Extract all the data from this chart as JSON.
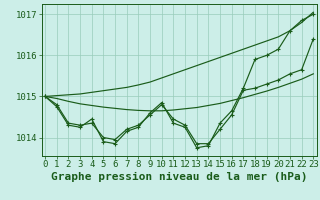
{
  "title": "Graphe pression niveau de la mer (hPa)",
  "background_color": "#cceee8",
  "grid_color": "#99ccbb",
  "line_color": "#1a5c1a",
  "x_ticks": [
    0,
    1,
    2,
    3,
    4,
    5,
    6,
    7,
    8,
    9,
    10,
    11,
    12,
    13,
    14,
    15,
    16,
    17,
    18,
    19,
    20,
    21,
    22,
    23
  ],
  "y_ticks": [
    1014,
    1015,
    1016,
    1017
  ],
  "ylim": [
    1013.55,
    1017.25
  ],
  "xlim": [
    -0.3,
    23.3
  ],
  "series": {
    "main1": [
      1015.0,
      1014.75,
      1014.3,
      1014.25,
      1014.45,
      1013.9,
      1013.85,
      1014.15,
      1014.25,
      1014.6,
      1014.85,
      1014.35,
      1014.25,
      1013.75,
      1013.8,
      1014.35,
      1014.65,
      1015.2,
      1015.9,
      1016.0,
      1016.15,
      1016.6,
      1016.85,
      1017.0
    ],
    "main2": [
      1015.0,
      1014.8,
      1014.35,
      1014.3,
      1014.35,
      1014.0,
      1013.95,
      1014.2,
      1014.3,
      1014.55,
      1014.8,
      1014.45,
      1014.3,
      1013.85,
      1013.85,
      1014.2,
      1014.55,
      1015.15,
      1015.2,
      1015.3,
      1015.4,
      1015.55,
      1015.65,
      1016.4
    ],
    "upper": [
      1015.0,
      1015.02,
      1015.04,
      1015.06,
      1015.1,
      1015.14,
      1015.18,
      1015.22,
      1015.28,
      1015.35,
      1015.45,
      1015.55,
      1015.65,
      1015.75,
      1015.85,
      1015.95,
      1016.05,
      1016.15,
      1016.25,
      1016.35,
      1016.45,
      1016.6,
      1016.8,
      1017.05
    ],
    "lower": [
      1015.0,
      1014.95,
      1014.88,
      1014.82,
      1014.78,
      1014.74,
      1014.71,
      1014.68,
      1014.66,
      1014.65,
      1014.65,
      1014.67,
      1014.7,
      1014.73,
      1014.78,
      1014.83,
      1014.9,
      1014.97,
      1015.05,
      1015.13,
      1015.22,
      1015.32,
      1015.42,
      1015.55
    ]
  },
  "title_fontsize": 8,
  "tick_fontsize": 6.5
}
